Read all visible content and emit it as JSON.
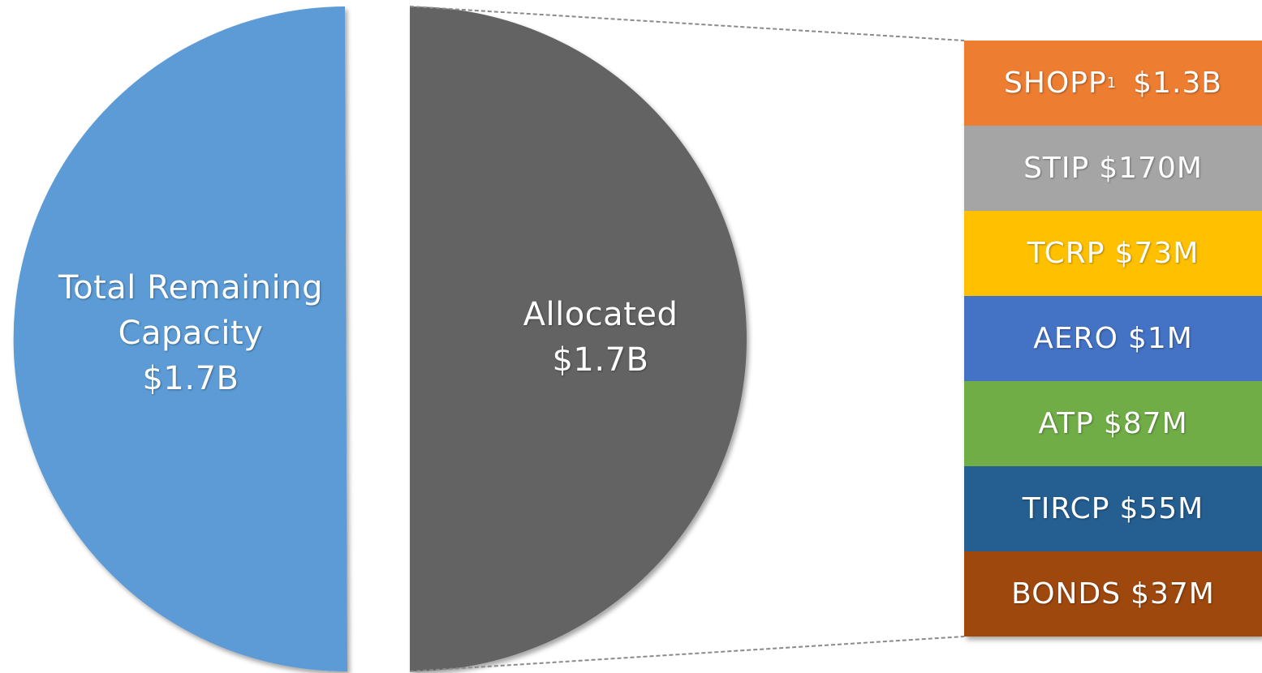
{
  "chart_data": {
    "type": "pie",
    "slices": [
      {
        "label": "Total Remaining Capacity",
        "value_text": "$1.7B",
        "value": 1.7,
        "color": "#5b9bd5"
      },
      {
        "label": "Allocated",
        "value_text": "$1.7B",
        "value": 1.7,
        "color": "#636363"
      }
    ],
    "breakdown": {
      "of": "Allocated",
      "items": [
        {
          "name": "SHOPP",
          "footnote": "1",
          "amount": "$1.3B",
          "value_millions": 1300,
          "color": "#ed7d31"
        },
        {
          "name": "STIP",
          "amount": "$170M",
          "value_millions": 170,
          "color": "#a5a5a5"
        },
        {
          "name": "TCRP",
          "amount": "$73M",
          "value_millions": 73,
          "color": "#ffc000"
        },
        {
          "name": "AERO",
          "amount": "$1M",
          "value_millions": 1,
          "color": "#4472c4"
        },
        {
          "name": "ATP",
          "amount": "$87M",
          "value_millions": 87,
          "color": "#70ad47"
        },
        {
          "name": "TIRCP",
          "amount": "$55M",
          "value_millions": 55,
          "color": "#255e91"
        },
        {
          "name": "BONDS",
          "amount": "$37M",
          "value_millions": 37,
          "color": "#9e480e"
        }
      ]
    }
  }
}
